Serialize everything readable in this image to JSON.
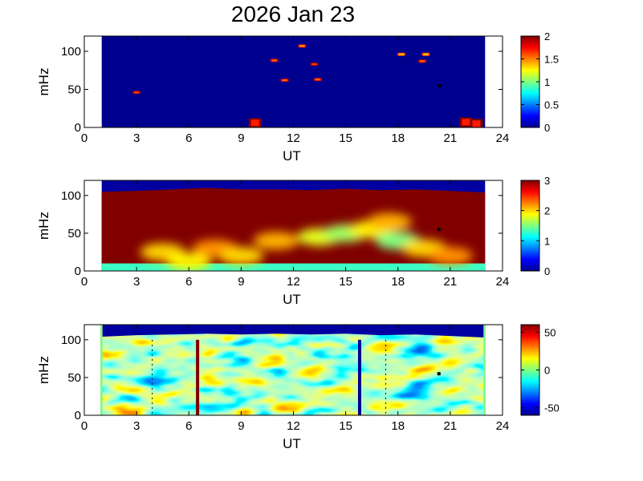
{
  "title": "2026 Jan 23",
  "colors": {
    "jet_dark_blue": "#00008f",
    "jet_blue": "#0000ff",
    "jet_cyan": "#00ffff",
    "jet_yellow": "#ffff00",
    "jet_red": "#ff0000",
    "jet_dark_red": "#800000"
  },
  "chart_data": [
    {
      "type": "heatmap",
      "xlabel": "UT",
      "ylabel": "mHz",
      "xlim": [
        0,
        24
      ],
      "ylim": [
        0,
        120
      ],
      "xticks": [
        "0",
        "3",
        "6",
        "9",
        "12",
        "15",
        "18",
        "21",
        "24"
      ],
      "yticks": [
        "0",
        "50",
        "100"
      ],
      "data_x_range": [
        1.0,
        23.0
      ],
      "colorbar": {
        "min": 0,
        "max": 2,
        "ticks": [
          "0",
          "0.5",
          "1",
          "1.5",
          "2"
        ]
      },
      "background_value": 0,
      "features": [
        {
          "x": 3.0,
          "y": 46,
          "value": 1.9
        },
        {
          "x": 9.8,
          "y": 6,
          "value": 2.0
        },
        {
          "x": 10.9,
          "y": 88,
          "value": 1.8
        },
        {
          "x": 11.5,
          "y": 62,
          "value": 1.8
        },
        {
          "x": 12.5,
          "y": 107,
          "value": 1.7
        },
        {
          "x": 13.2,
          "y": 83,
          "value": 1.9
        },
        {
          "x": 13.4,
          "y": 63,
          "value": 1.8
        },
        {
          "x": 18.2,
          "y": 96,
          "value": 1.6
        },
        {
          "x": 19.4,
          "y": 87,
          "value": 1.8
        },
        {
          "x": 19.6,
          "y": 96,
          "value": 1.6
        },
        {
          "x": 20.4,
          "y": 55,
          "value": 0.0
        },
        {
          "x": 21.9,
          "y": 7,
          "value": 2.0
        },
        {
          "x": 22.5,
          "y": 5,
          "value": 2.0
        }
      ]
    },
    {
      "type": "heatmap",
      "xlabel": "UT",
      "ylabel": "mHz",
      "xlim": [
        0,
        24
      ],
      "ylim": [
        0,
        120
      ],
      "xticks": [
        "0",
        "3",
        "6",
        "9",
        "12",
        "15",
        "18",
        "21",
        "24"
      ],
      "yticks": [
        "0",
        "50",
        "100"
      ],
      "data_x_range": [
        1.0,
        23.0
      ],
      "colorbar": {
        "min": 0,
        "max": 3,
        "ticks": [
          "0",
          "1",
          "2",
          "3"
        ]
      },
      "saturated_value": 3,
      "upper_cutoff_mhz": [
        [
          1,
          105
        ],
        [
          3,
          106
        ],
        [
          5,
          108
        ],
        [
          7,
          110
        ],
        [
          9,
          108
        ],
        [
          11,
          108
        ],
        [
          13,
          107
        ],
        [
          15,
          109
        ],
        [
          17,
          107
        ],
        [
          19,
          108
        ],
        [
          21,
          106
        ],
        [
          23,
          104
        ]
      ],
      "low_band": {
        "y_max_mhz": 10,
        "value": 1.3
      },
      "features": [
        {
          "x": 4.5,
          "y": 25,
          "value": 2.0
        },
        {
          "x": 7.5,
          "y": 30,
          "value": 2.2
        },
        {
          "x": 9.0,
          "y": 20,
          "value": 2.0
        },
        {
          "x": 11.0,
          "y": 40,
          "value": 2.1
        },
        {
          "x": 13.5,
          "y": 45,
          "value": 1.8
        },
        {
          "x": 15.0,
          "y": 50,
          "value": 1.6
        },
        {
          "x": 16.5,
          "y": 55,
          "value": 1.9
        },
        {
          "x": 17.5,
          "y": 65,
          "value": 2.1
        },
        {
          "x": 18.0,
          "y": 40,
          "value": 1.5
        },
        {
          "x": 19.5,
          "y": 30,
          "value": 2.0
        },
        {
          "x": 21.0,
          "y": 20,
          "value": 2.2
        },
        {
          "x": 6.0,
          "y": 12,
          "value": 1.9
        }
      ]
    },
    {
      "type": "heatmap",
      "xlabel": "UT",
      "ylabel": "mHz",
      "xlim": [
        0,
        24
      ],
      "ylim": [
        0,
        120
      ],
      "xticks": [
        "0",
        "3",
        "6",
        "9",
        "12",
        "15",
        "18",
        "21",
        "24"
      ],
      "yticks": [
        "0",
        "50",
        "100"
      ],
      "data_x_range": [
        1.0,
        23.0
      ],
      "colorbar": {
        "min": -60,
        "max": 60,
        "ticks": [
          "-50",
          "0",
          "50"
        ]
      },
      "upper_cutoff_mhz": [
        [
          1,
          104
        ],
        [
          3,
          106
        ],
        [
          5,
          107
        ],
        [
          7,
          108
        ],
        [
          9,
          107
        ],
        [
          11,
          108
        ],
        [
          13,
          107
        ],
        [
          15,
          108
        ],
        [
          17,
          106
        ],
        [
          19,
          107
        ],
        [
          21,
          105
        ],
        [
          23,
          103
        ]
      ],
      "vertical_lines": [
        {
          "x": 6.5,
          "y_top": 100,
          "value": 60
        },
        {
          "x": 15.8,
          "y_top": 100,
          "value": -60
        }
      ],
      "dashed_markers": [
        {
          "x": 3.9,
          "y_top": 100
        },
        {
          "x": 17.3,
          "y_top": 100
        }
      ]
    }
  ]
}
